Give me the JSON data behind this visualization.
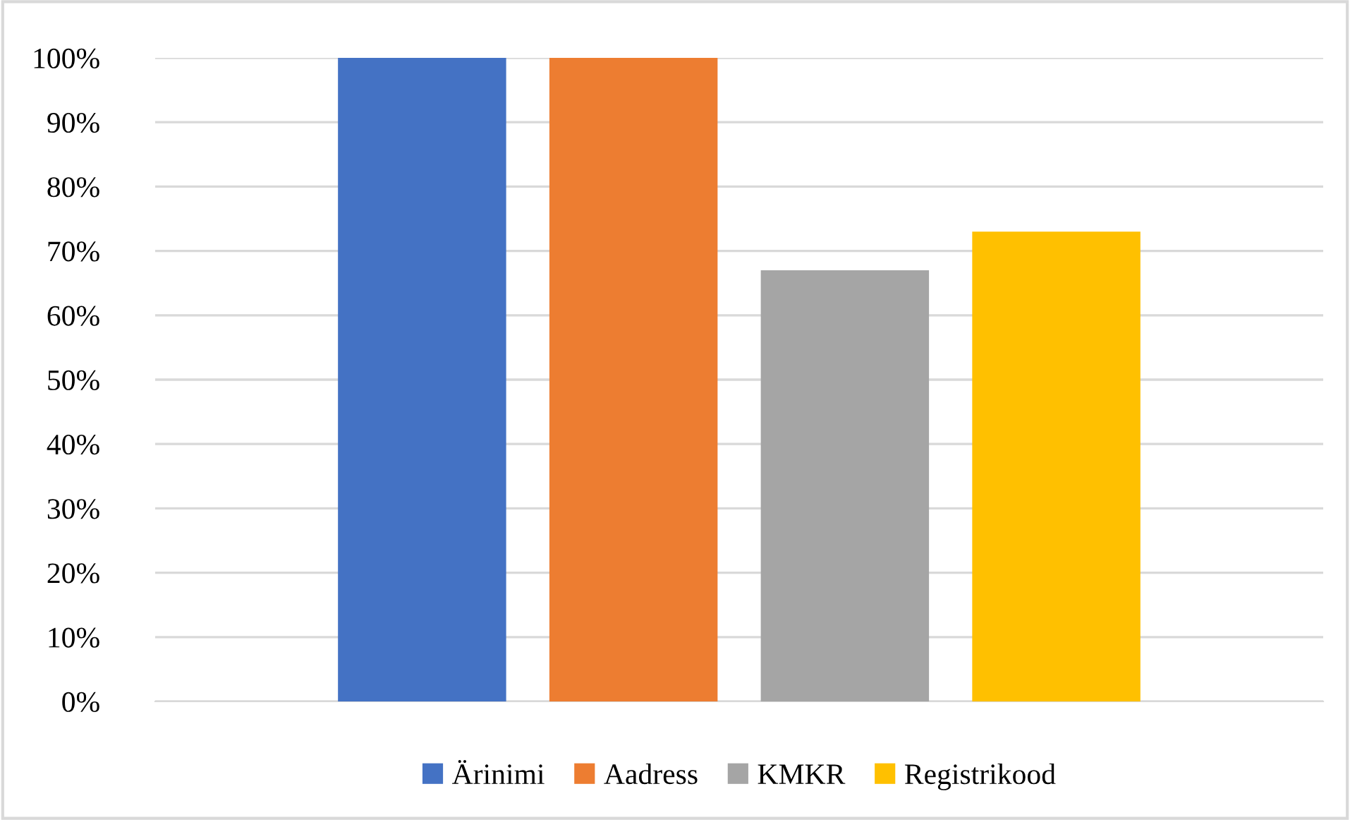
{
  "chart_data": {
    "type": "bar",
    "categories": [
      null
    ],
    "series": [
      {
        "name": "Ärinimi",
        "color": "#4472c4",
        "values": [
          100
        ]
      },
      {
        "name": "Aadress",
        "color": "#ed7d31",
        "values": [
          100
        ]
      },
      {
        "name": "KMKR",
        "color": "#a5a5a5",
        "values": [
          67
        ]
      },
      {
        "name": "Registrikood",
        "color": "#ffc000",
        "values": [
          73
        ]
      }
    ],
    "ylim": [
      0,
      100
    ],
    "yticks": [
      {
        "value": 0,
        "label": "0%"
      },
      {
        "value": 10,
        "label": "10%"
      },
      {
        "value": 20,
        "label": "20%"
      },
      {
        "value": 30,
        "label": "30%"
      },
      {
        "value": 40,
        "label": "40%"
      },
      {
        "value": 50,
        "label": "50%"
      },
      {
        "value": 60,
        "label": "60%"
      },
      {
        "value": 70,
        "label": "70%"
      },
      {
        "value": 80,
        "label": "80%"
      },
      {
        "value": 90,
        "label": "90%"
      },
      {
        "value": 100,
        "label": "100%"
      }
    ],
    "grid": "y",
    "legend": "bottom"
  }
}
